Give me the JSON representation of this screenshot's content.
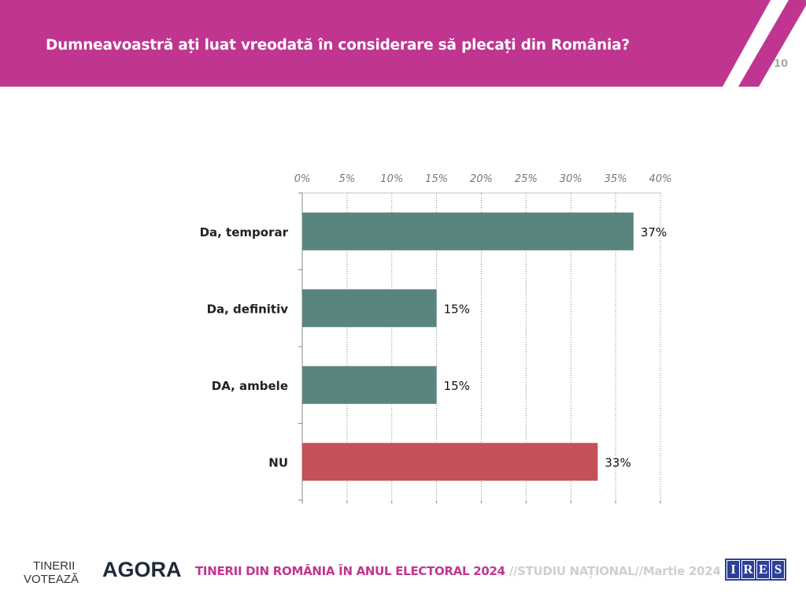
{
  "header": {
    "title": "Dumneavoastră ați luat vreodată în considerare să plecați din România?",
    "page_number": "10",
    "color": "#bf3590"
  },
  "chart_data": {
    "type": "bar",
    "orientation": "horizontal",
    "categories": [
      "Da, temporar",
      "Da, definitiv",
      "DA, ambele",
      "NU"
    ],
    "values": [
      37,
      15,
      15,
      33
    ],
    "data_labels": [
      "37%",
      "15%",
      "15%",
      "33%"
    ],
    "colors": [
      "#5a857e",
      "#5a857e",
      "#5a857e",
      "#c4505a"
    ],
    "xlim": [
      0,
      40
    ],
    "x_ticks": [
      "0%",
      "5%",
      "10%",
      "15%",
      "20%",
      "25%",
      "30%",
      "35%",
      "40%"
    ],
    "x_tick_values": [
      0,
      5,
      10,
      15,
      20,
      25,
      30,
      35,
      40
    ],
    "axis_position": "top",
    "grid": true,
    "title": "",
    "xlabel": "",
    "ylabel": ""
  },
  "footer": {
    "title": "TINERII DIN ROMÂNIA ÎN ANUL ELECTORAL 2024",
    "subtitle": " //STUDIU NAȚIONAL//Martie 2024",
    "logo_tinerii": [
      "TINERII",
      "VOTEAZĂ"
    ],
    "logo_agora": "AGORA",
    "logo_ires": [
      "I",
      "R",
      "E",
      "S"
    ]
  }
}
